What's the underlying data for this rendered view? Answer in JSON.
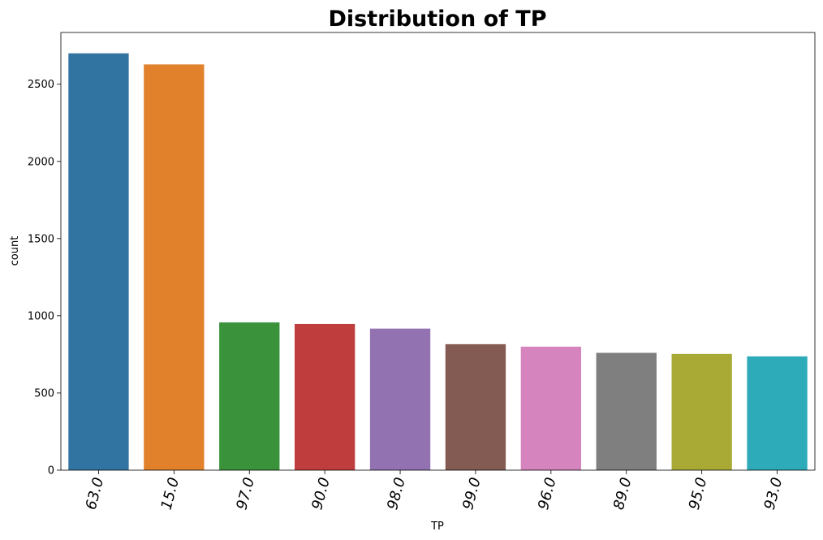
{
  "chart_data": {
    "type": "bar",
    "title": "Distribution of TP",
    "xlabel": "TP",
    "ylabel": "count",
    "categories": [
      "63.0",
      "15.0",
      "97.0",
      "90.0",
      "98.0",
      "99.0",
      "96.0",
      "89.0",
      "95.0",
      "93.0"
    ],
    "values": [
      2700,
      2628,
      957,
      947,
      917,
      816,
      800,
      760,
      753,
      737
    ],
    "colors": [
      "#3274a1",
      "#e1812c",
      "#3a923a",
      "#c03d3e",
      "#9372b2",
      "#845b53",
      "#d684bd",
      "#7f7f7f",
      "#a9aa35",
      "#2eabb8"
    ],
    "yticks": [
      0,
      500,
      1000,
      1500,
      2000,
      2500
    ],
    "ytick_labels": [
      "0",
      "500",
      "1000",
      "1500",
      "2000",
      "2500"
    ],
    "ylim": [
      0,
      2835
    ],
    "grid": false,
    "legend": false
  }
}
